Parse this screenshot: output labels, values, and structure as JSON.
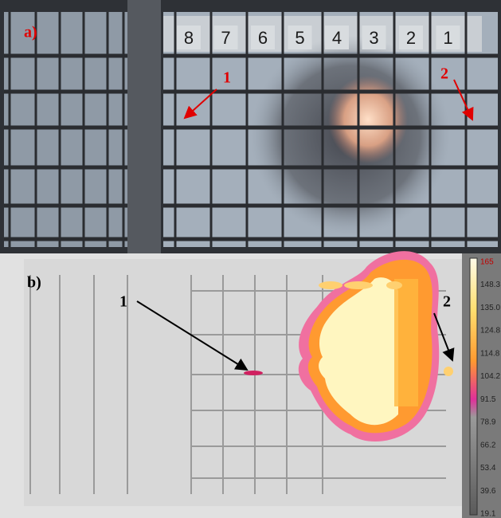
{
  "panel_a": {
    "label": "a)",
    "markers": [
      "1",
      "2"
    ],
    "grid_numbers": [
      "8",
      "7",
      "6",
      "5",
      "4",
      "3",
      "2",
      "1"
    ]
  },
  "panel_b": {
    "label": "b)",
    "markers": [
      "1",
      "2"
    ],
    "scale_labels": [
      "165",
      "148.3",
      "135.0",
      "124.8",
      "114.8",
      "104.2",
      "91.5",
      "78.9",
      "66.2",
      "53.4",
      "39.6",
      "19.1"
    ]
  }
}
